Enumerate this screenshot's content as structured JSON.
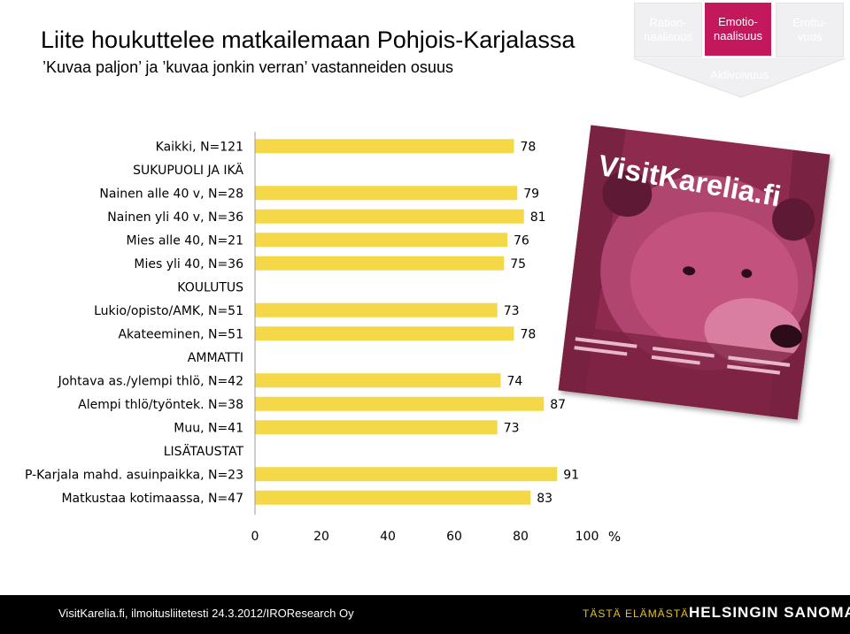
{
  "header": {
    "title": "Liite houkuttelee matkailemaan Pohjois-Karjalassa",
    "subtitle": "’Kuvaa paljon’ ja ’kuvaa jonkin verran’ vastanneiden osuus"
  },
  "nav": {
    "boxes": [
      {
        "label": "Ration-\nnaalisuus",
        "active": false
      },
      {
        "label": "Emotio-\nnaalisuus",
        "active": true
      },
      {
        "label": "Erottu-\nvuus",
        "active": false
      }
    ],
    "arrow_label": "Aktivoivuus"
  },
  "cover": {
    "masthead": "VisitKarelia.fi"
  },
  "footer": {
    "source": "VisitKarelia.fi, ilmoitusliitetesti 24.3.2012/IROResearch Oy",
    "tagline": "TÄSTÄ ELÄMÄSTÄ.",
    "logo": "HELSINGIN SANOMAT"
  },
  "colors": {
    "bar": "#f5d847",
    "accent": "#c4185c",
    "footer_bg": "#000000"
  },
  "chart_data": {
    "type": "bar",
    "orientation": "horizontal",
    "xlim": [
      0,
      100
    ],
    "xticks": [
      0,
      20,
      40,
      60,
      80,
      100
    ],
    "unit": "%",
    "grid": false,
    "rows": [
      {
        "label": "Kaikki, N=121",
        "value": 78
      },
      {
        "label": "SUKUPUOLI JA IKÄ",
        "value": null
      },
      {
        "label": "Nainen alle 40 v, N=28",
        "value": 79
      },
      {
        "label": "Nainen yli 40 v, N=36",
        "value": 81
      },
      {
        "label": "Mies alle 40, N=21",
        "value": 76
      },
      {
        "label": "Mies yli 40, N=36",
        "value": 75
      },
      {
        "label": "KOULUTUS",
        "value": null
      },
      {
        "label": "Lukio/opisto/AMK, N=51",
        "value": 73
      },
      {
        "label": "Akateeminen, N=51",
        "value": 78
      },
      {
        "label": "AMMATTI",
        "value": null
      },
      {
        "label": "Johtava as./ylempi thlö, N=42",
        "value": 74
      },
      {
        "label": "Alempi thlö/työntek. N=38",
        "value": 87
      },
      {
        "label": "Muu, N=41",
        "value": 73
      },
      {
        "label": "LISÄTAUSTAT",
        "value": null
      },
      {
        "label": "P-Karjala mahd. asuinpaikka, N=23",
        "value": 91
      },
      {
        "label": "Matkustaa  kotimaassa, N=47",
        "value": 83
      }
    ]
  }
}
